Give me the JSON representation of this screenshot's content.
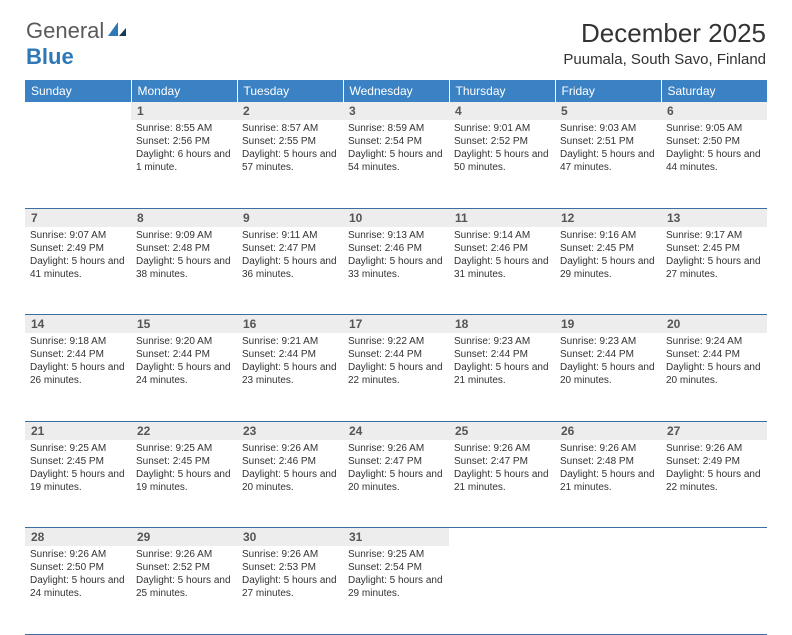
{
  "logo": {
    "text1": "General",
    "text2": "Blue"
  },
  "title": "December 2025",
  "location": "Puumala, South Savo, Finland",
  "header_color": "#3b82c4",
  "day_bg": "#ededed",
  "border_color": "#3b6fa0",
  "weekdays": [
    "Sunday",
    "Monday",
    "Tuesday",
    "Wednesday",
    "Thursday",
    "Friday",
    "Saturday"
  ],
  "weeks": [
    [
      null,
      {
        "n": "1",
        "sr": "8:55 AM",
        "ss": "2:56 PM",
        "dl": "6 hours and 1 minute."
      },
      {
        "n": "2",
        "sr": "8:57 AM",
        "ss": "2:55 PM",
        "dl": "5 hours and 57 minutes."
      },
      {
        "n": "3",
        "sr": "8:59 AM",
        "ss": "2:54 PM",
        "dl": "5 hours and 54 minutes."
      },
      {
        "n": "4",
        "sr": "9:01 AM",
        "ss": "2:52 PM",
        "dl": "5 hours and 50 minutes."
      },
      {
        "n": "5",
        "sr": "9:03 AM",
        "ss": "2:51 PM",
        "dl": "5 hours and 47 minutes."
      },
      {
        "n": "6",
        "sr": "9:05 AM",
        "ss": "2:50 PM",
        "dl": "5 hours and 44 minutes."
      }
    ],
    [
      {
        "n": "7",
        "sr": "9:07 AM",
        "ss": "2:49 PM",
        "dl": "5 hours and 41 minutes."
      },
      {
        "n": "8",
        "sr": "9:09 AM",
        "ss": "2:48 PM",
        "dl": "5 hours and 38 minutes."
      },
      {
        "n": "9",
        "sr": "9:11 AM",
        "ss": "2:47 PM",
        "dl": "5 hours and 36 minutes."
      },
      {
        "n": "10",
        "sr": "9:13 AM",
        "ss": "2:46 PM",
        "dl": "5 hours and 33 minutes."
      },
      {
        "n": "11",
        "sr": "9:14 AM",
        "ss": "2:46 PM",
        "dl": "5 hours and 31 minutes."
      },
      {
        "n": "12",
        "sr": "9:16 AM",
        "ss": "2:45 PM",
        "dl": "5 hours and 29 minutes."
      },
      {
        "n": "13",
        "sr": "9:17 AM",
        "ss": "2:45 PM",
        "dl": "5 hours and 27 minutes."
      }
    ],
    [
      {
        "n": "14",
        "sr": "9:18 AM",
        "ss": "2:44 PM",
        "dl": "5 hours and 26 minutes."
      },
      {
        "n": "15",
        "sr": "9:20 AM",
        "ss": "2:44 PM",
        "dl": "5 hours and 24 minutes."
      },
      {
        "n": "16",
        "sr": "9:21 AM",
        "ss": "2:44 PM",
        "dl": "5 hours and 23 minutes."
      },
      {
        "n": "17",
        "sr": "9:22 AM",
        "ss": "2:44 PM",
        "dl": "5 hours and 22 minutes."
      },
      {
        "n": "18",
        "sr": "9:23 AM",
        "ss": "2:44 PM",
        "dl": "5 hours and 21 minutes."
      },
      {
        "n": "19",
        "sr": "9:23 AM",
        "ss": "2:44 PM",
        "dl": "5 hours and 20 minutes."
      },
      {
        "n": "20",
        "sr": "9:24 AM",
        "ss": "2:44 PM",
        "dl": "5 hours and 20 minutes."
      }
    ],
    [
      {
        "n": "21",
        "sr": "9:25 AM",
        "ss": "2:45 PM",
        "dl": "5 hours and 19 minutes."
      },
      {
        "n": "22",
        "sr": "9:25 AM",
        "ss": "2:45 PM",
        "dl": "5 hours and 19 minutes."
      },
      {
        "n": "23",
        "sr": "9:26 AM",
        "ss": "2:46 PM",
        "dl": "5 hours and 20 minutes."
      },
      {
        "n": "24",
        "sr": "9:26 AM",
        "ss": "2:47 PM",
        "dl": "5 hours and 20 minutes."
      },
      {
        "n": "25",
        "sr": "9:26 AM",
        "ss": "2:47 PM",
        "dl": "5 hours and 21 minutes."
      },
      {
        "n": "26",
        "sr": "9:26 AM",
        "ss": "2:48 PM",
        "dl": "5 hours and 21 minutes."
      },
      {
        "n": "27",
        "sr": "9:26 AM",
        "ss": "2:49 PM",
        "dl": "5 hours and 22 minutes."
      }
    ],
    [
      {
        "n": "28",
        "sr": "9:26 AM",
        "ss": "2:50 PM",
        "dl": "5 hours and 24 minutes."
      },
      {
        "n": "29",
        "sr": "9:26 AM",
        "ss": "2:52 PM",
        "dl": "5 hours and 25 minutes."
      },
      {
        "n": "30",
        "sr": "9:26 AM",
        "ss": "2:53 PM",
        "dl": "5 hours and 27 minutes."
      },
      {
        "n": "31",
        "sr": "9:25 AM",
        "ss": "2:54 PM",
        "dl": "5 hours and 29 minutes."
      },
      null,
      null,
      null
    ]
  ],
  "labels": {
    "sunrise": "Sunrise: ",
    "sunset": "Sunset: ",
    "daylight": "Daylight: "
  }
}
